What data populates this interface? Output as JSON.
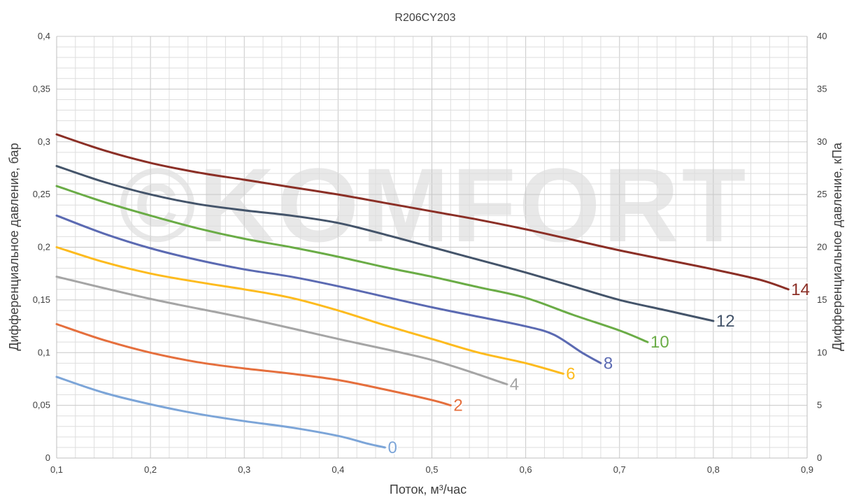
{
  "chart_data": {
    "type": "line",
    "title": "R206CY203",
    "xlabel": "Поток, м³/час",
    "ylabel": "Дифференциальное давление, бар",
    "y2label": "Дифференциальное давление, кПа",
    "xlim": [
      0.1,
      0.9
    ],
    "ylim": [
      0,
      0.4
    ],
    "y2lim": [
      0,
      40
    ],
    "x_ticks": [
      "0,1",
      "0,2",
      "0,3",
      "0,4",
      "0,5",
      "0,6",
      "0,7",
      "0,8",
      "0,9"
    ],
    "y_ticks": [
      "0",
      "0,05",
      "0,1",
      "0,15",
      "0,2",
      "0,25",
      "0,3",
      "0,35",
      "0,4"
    ],
    "y2_ticks": [
      "0",
      "5",
      "10",
      "15",
      "20",
      "25",
      "30",
      "35",
      "40"
    ],
    "grid": true,
    "watermark": "©KOMFORT",
    "series": [
      {
        "name": "0",
        "color": "#7ca5d8",
        "points": [
          [
            0.1,
            0.077
          ],
          [
            0.15,
            0.062
          ],
          [
            0.2,
            0.051
          ],
          [
            0.25,
            0.042
          ],
          [
            0.3,
            0.035
          ],
          [
            0.35,
            0.029
          ],
          [
            0.4,
            0.021
          ],
          [
            0.43,
            0.014
          ],
          [
            0.45,
            0.01
          ]
        ]
      },
      {
        "name": "2",
        "color": "#e56f3d",
        "points": [
          [
            0.1,
            0.127
          ],
          [
            0.15,
            0.112
          ],
          [
            0.2,
            0.1
          ],
          [
            0.25,
            0.091
          ],
          [
            0.3,
            0.085
          ],
          [
            0.35,
            0.08
          ],
          [
            0.4,
            0.074
          ],
          [
            0.45,
            0.065
          ],
          [
            0.5,
            0.055
          ],
          [
            0.52,
            0.05
          ]
        ]
      },
      {
        "name": "4",
        "color": "#a5a5a5",
        "points": [
          [
            0.1,
            0.172
          ],
          [
            0.2,
            0.151
          ],
          [
            0.3,
            0.133
          ],
          [
            0.4,
            0.113
          ],
          [
            0.5,
            0.093
          ],
          [
            0.58,
            0.07
          ]
        ]
      },
      {
        "name": "6",
        "color": "#fdbb1e",
        "points": [
          [
            0.1,
            0.2
          ],
          [
            0.15,
            0.186
          ],
          [
            0.2,
            0.175
          ],
          [
            0.25,
            0.167
          ],
          [
            0.3,
            0.16
          ],
          [
            0.35,
            0.152
          ],
          [
            0.4,
            0.14
          ],
          [
            0.45,
            0.126
          ],
          [
            0.5,
            0.113
          ],
          [
            0.55,
            0.1
          ],
          [
            0.6,
            0.09
          ],
          [
            0.64,
            0.08
          ]
        ]
      },
      {
        "name": "8",
        "color": "#5b6ab2",
        "points": [
          [
            0.1,
            0.23
          ],
          [
            0.15,
            0.213
          ],
          [
            0.2,
            0.199
          ],
          [
            0.25,
            0.188
          ],
          [
            0.3,
            0.179
          ],
          [
            0.35,
            0.172
          ],
          [
            0.4,
            0.163
          ],
          [
            0.45,
            0.153
          ],
          [
            0.5,
            0.143
          ],
          [
            0.55,
            0.134
          ],
          [
            0.6,
            0.125
          ],
          [
            0.63,
            0.117
          ],
          [
            0.66,
            0.1
          ],
          [
            0.68,
            0.09
          ]
        ]
      },
      {
        "name": "10",
        "color": "#6aac46",
        "points": [
          [
            0.1,
            0.258
          ],
          [
            0.15,
            0.243
          ],
          [
            0.2,
            0.23
          ],
          [
            0.25,
            0.218
          ],
          [
            0.3,
            0.208
          ],
          [
            0.35,
            0.2
          ],
          [
            0.4,
            0.191
          ],
          [
            0.45,
            0.181
          ],
          [
            0.5,
            0.172
          ],
          [
            0.55,
            0.162
          ],
          [
            0.6,
            0.152
          ],
          [
            0.65,
            0.136
          ],
          [
            0.7,
            0.121
          ],
          [
            0.73,
            0.11
          ]
        ]
      },
      {
        "name": "12",
        "color": "#44546a",
        "points": [
          [
            0.1,
            0.277
          ],
          [
            0.15,
            0.262
          ],
          [
            0.2,
            0.25
          ],
          [
            0.25,
            0.241
          ],
          [
            0.3,
            0.235
          ],
          [
            0.35,
            0.23
          ],
          [
            0.4,
            0.223
          ],
          [
            0.45,
            0.212
          ],
          [
            0.5,
            0.2
          ],
          [
            0.55,
            0.188
          ],
          [
            0.6,
            0.176
          ],
          [
            0.65,
            0.163
          ],
          [
            0.7,
            0.15
          ],
          [
            0.75,
            0.14
          ],
          [
            0.8,
            0.13
          ]
        ]
      },
      {
        "name": "14",
        "color": "#8b2f26",
        "points": [
          [
            0.1,
            0.307
          ],
          [
            0.15,
            0.292
          ],
          [
            0.2,
            0.28
          ],
          [
            0.25,
            0.271
          ],
          [
            0.3,
            0.264
          ],
          [
            0.35,
            0.257
          ],
          [
            0.4,
            0.25
          ],
          [
            0.45,
            0.242
          ],
          [
            0.5,
            0.234
          ],
          [
            0.55,
            0.226
          ],
          [
            0.6,
            0.217
          ],
          [
            0.65,
            0.207
          ],
          [
            0.7,
            0.197
          ],
          [
            0.75,
            0.188
          ],
          [
            0.8,
            0.179
          ],
          [
            0.85,
            0.169
          ],
          [
            0.88,
            0.16
          ]
        ]
      }
    ]
  }
}
